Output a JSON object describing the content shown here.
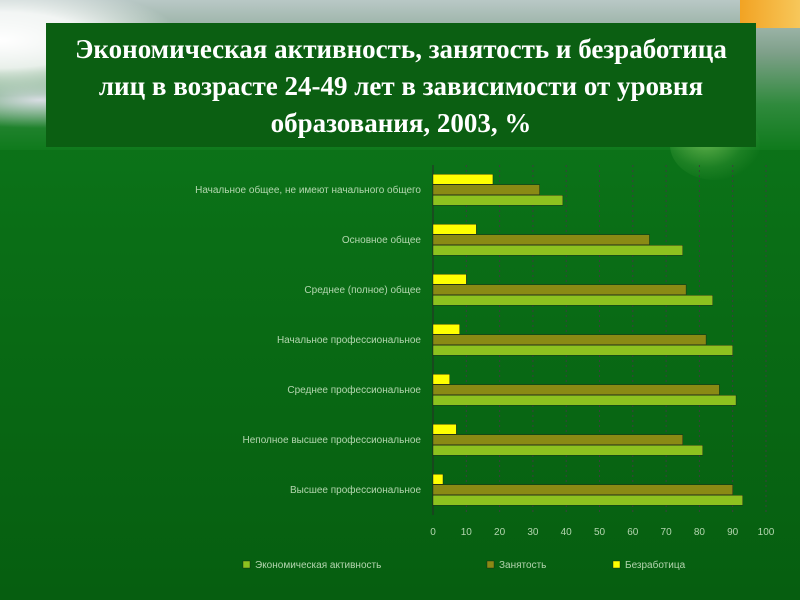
{
  "slide": {
    "title": "Экономическая активность, занятость и безработица лиц в возрасте 24-49 лет в зависимости от уровня образования, 2003, %"
  },
  "colors": {
    "activity": "#8dc21f",
    "employment": "#8a8a14",
    "unemployment": "#ffff00",
    "grid": "#3e3e3e"
  },
  "chart_data": {
    "type": "bar",
    "orientation": "horizontal",
    "title": "Экономическая активность, занятость и безработица лиц в возрасте 24-49 лет в зависимости от уровня образования, 2003, %",
    "categories": [
      "Начальное общее, не имеют начального общего",
      "Основное общее",
      "Среднее (полное) общее",
      "Начальное профессиональное",
      "Среднее профессиональное",
      "Неполное высшее профессиональное",
      "Высшее профессиональное"
    ],
    "series": [
      {
        "name": "Экономическая активность",
        "values": [
          39,
          75,
          84,
          90,
          91,
          81,
          93
        ]
      },
      {
        "name": "Занятость",
        "values": [
          32,
          65,
          76,
          82,
          86,
          75,
          90
        ]
      },
      {
        "name": "Безработица",
        "values": [
          18,
          13,
          10,
          8,
          5,
          7,
          3
        ]
      }
    ],
    "xlim": [
      0,
      100
    ],
    "xticks": [
      "0",
      "10",
      "20",
      "30",
      "40",
      "50",
      "60",
      "70",
      "80",
      "90",
      "100"
    ],
    "grid": true,
    "legend_position": "bottom",
    "xlabel": "",
    "ylabel": ""
  }
}
